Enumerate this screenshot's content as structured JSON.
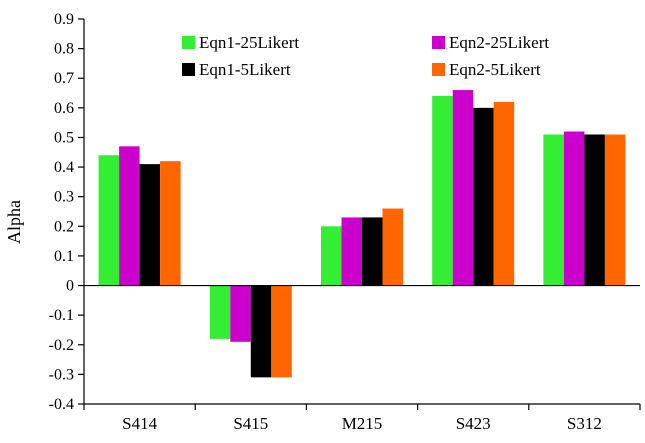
{
  "chart_data": {
    "type": "bar",
    "title": "",
    "xlabel": "",
    "ylabel": "Alpha",
    "ylim": [
      -0.4,
      0.9
    ],
    "yticks": [
      "0.9",
      "0.8",
      "0.7",
      "0.6",
      "0.5",
      "0.4",
      "0.3",
      "0.2",
      "0.1",
      "0",
      "-0.1",
      "-0.2",
      "-0.3",
      "-0.4"
    ],
    "categories": [
      "S414",
      "S415",
      "M215",
      "S423",
      "S312"
    ],
    "series": [
      {
        "name": "Eqn1-25Likert",
        "color": "#33ee33",
        "values": [
          0.44,
          -0.18,
          0.2,
          0.64,
          0.51
        ]
      },
      {
        "name": "Eqn2-25Likert",
        "color": "#cc00cc",
        "values": [
          0.47,
          -0.19,
          0.23,
          0.66,
          0.52
        ]
      },
      {
        "name": "Eqn1-5Likert",
        "color": "#000000",
        "values": [
          0.41,
          -0.31,
          0.23,
          0.6,
          0.51
        ]
      },
      {
        "name": "Eqn2-5Likert",
        "color": "#ff6600",
        "values": [
          0.42,
          -0.31,
          0.26,
          0.62,
          0.51
        ]
      }
    ],
    "legend": {
      "position": "top",
      "columns": 2
    },
    "grid": false
  }
}
